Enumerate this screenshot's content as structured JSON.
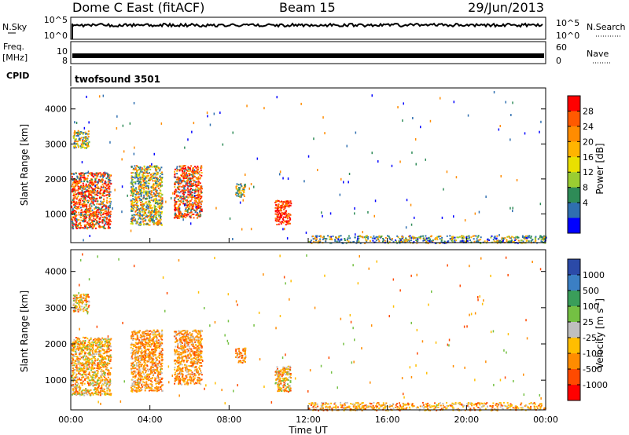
{
  "header": {
    "station": "Dome C East (fitACF)",
    "beam": "Beam 15",
    "date": "29/Jun/2013"
  },
  "sky_panel": {
    "left_label": "N.Sky",
    "left_ticks": [
      "10^5",
      "10^0"
    ],
    "right_ticks": [
      "10^5",
      "10^0"
    ],
    "right_label": "N.Search"
  },
  "freq_panel": {
    "left_label_top": "Freq.",
    "left_label_unit": "[MHz]",
    "left_ticks": [
      "10",
      "8"
    ],
    "right_ticks": [
      "60",
      "0"
    ],
    "right_label": "Nave"
  },
  "cpid": {
    "label": "CPID",
    "program": "twofsound 3501"
  },
  "axes": {
    "xlabel": "Time UT",
    "xticks": [
      "00:00",
      "04:00",
      "08:00",
      "12:00",
      "16:00",
      "20:00",
      "00:00"
    ],
    "ylabel": "Slant Range [km]",
    "yticks": [
      "4000",
      "3000",
      "2000",
      "1000"
    ]
  },
  "chart_data": [
    {
      "type": "heatmap",
      "title": "",
      "xlabel": "",
      "ylabel": "Slant Range [km]",
      "x_range_hours": [
        0,
        24
      ],
      "y_range_km": [
        180,
        4600
      ],
      "colorbar": {
        "label": "Power [dB]",
        "ticks": [
          "28",
          "24",
          "20",
          "16",
          "12",
          "8",
          "4"
        ],
        "colors": [
          "#ff0000",
          "#ff5a00",
          "#ff8c00",
          "#ffb400",
          "#e9e000",
          "#9acd32",
          "#2e8b57",
          "#2f6fb0",
          "#0000ff"
        ]
      },
      "clusters": [
        {
          "t_hours": [
            0.1,
            0.9
          ],
          "range_km": [
            2900,
            3400
          ],
          "dominant": "orange-green"
        },
        {
          "t_hours": [
            0.0,
            2.0
          ],
          "range_km": [
            600,
            2200
          ],
          "dominant": "red-orange"
        },
        {
          "t_hours": [
            3.0,
            4.6
          ],
          "range_km": [
            700,
            2400
          ],
          "dominant": "orange-green"
        },
        {
          "t_hours": [
            5.2,
            6.6
          ],
          "range_km": [
            900,
            2400
          ],
          "dominant": "red-orange"
        },
        {
          "t_hours": [
            8.3,
            8.8
          ],
          "range_km": [
            1500,
            1900
          ],
          "dominant": "green-orange"
        },
        {
          "t_hours": [
            10.3,
            11.1
          ],
          "range_km": [
            700,
            1400
          ],
          "dominant": "red"
        },
        {
          "t_hours": [
            12.0,
            24.0
          ],
          "range_km": [
            180,
            400
          ],
          "dominant": "mixed"
        }
      ]
    },
    {
      "type": "heatmap",
      "title": "",
      "xlabel": "Time UT",
      "ylabel": "Slant Range [km]",
      "x_range_hours": [
        0,
        24
      ],
      "y_range_km": [
        180,
        4600
      ],
      "colorbar": {
        "label": "Velocity [m s^-1]",
        "ticks": [
          "1000",
          "500",
          "100",
          "25",
          "-25",
          "-100",
          "-500",
          "-1000"
        ],
        "colors": [
          "#2b4aa8",
          "#3b7fc4",
          "#3a9e5a",
          "#74c043",
          "#bfbfbf",
          "#ffbe00",
          "#ff8c00",
          "#ff4a00",
          "#ff0000"
        ]
      },
      "clusters": [
        {
          "t_hours": [
            0.1,
            0.9
          ],
          "range_km": [
            2900,
            3400
          ],
          "dominant": "orange-green"
        },
        {
          "t_hours": [
            0.0,
            2.0
          ],
          "range_km": [
            600,
            2200
          ],
          "dominant": "orange-green"
        },
        {
          "t_hours": [
            3.0,
            4.6
          ],
          "range_km": [
            700,
            2400
          ],
          "dominant": "orange"
        },
        {
          "t_hours": [
            5.2,
            6.6
          ],
          "range_km": [
            900,
            2400
          ],
          "dominant": "orange"
        },
        {
          "t_hours": [
            8.3,
            8.8
          ],
          "range_km": [
            1500,
            1900
          ],
          "dominant": "orange"
        },
        {
          "t_hours": [
            10.3,
            11.1
          ],
          "range_km": [
            700,
            1400
          ],
          "dominant": "orange-green"
        },
        {
          "t_hours": [
            12.0,
            24.0
          ],
          "range_km": [
            180,
            400
          ],
          "dominant": "yellow-orange"
        }
      ]
    }
  ]
}
